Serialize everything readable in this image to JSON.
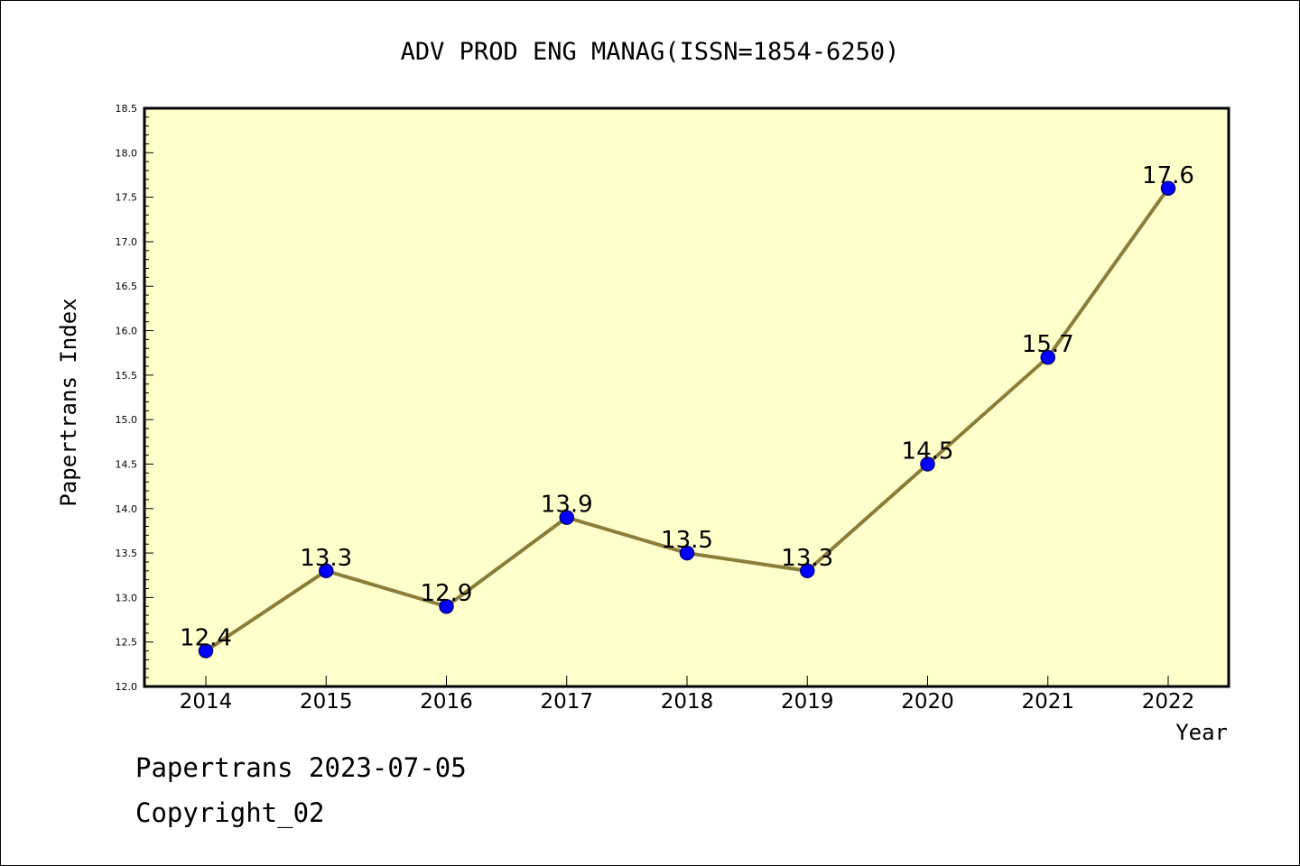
{
  "chart_data": {
    "type": "line",
    "title": "ADV PROD ENG MANAG(ISSN=1854-6250)",
    "xlabel": "Year",
    "ylabel": "Papertrans Index",
    "categories": [
      "2014",
      "2015",
      "2016",
      "2017",
      "2018",
      "2019",
      "2020",
      "2021",
      "2022"
    ],
    "series": [
      {
        "values": [
          12.4,
          13.3,
          12.9,
          13.9,
          13.5,
          13.3,
          14.5,
          15.7,
          17.6
        ],
        "labels": [
          "12.4",
          "13.3",
          "12.9",
          "13.9",
          "13.5",
          "13.3",
          "14.5",
          "15.7",
          "17.6"
        ]
      }
    ],
    "ylim": [
      12.0,
      18.5
    ],
    "yticks": [
      "12.0",
      "12.5",
      "13.0",
      "13.5",
      "14.0",
      "14.5",
      "15.0",
      "15.5",
      "16.0",
      "16.5",
      "17.0",
      "17.5",
      "18.0",
      "18.5"
    ],
    "grid": false,
    "legend": "none",
    "colors": {
      "plot_background": "#ffffcc",
      "line": "#8b7d3a",
      "marker_fill": "#0000ff",
      "marker_edge": "#000080",
      "axes": "#000000"
    }
  },
  "footer": {
    "date_line": "Papertrans 2023-07-05",
    "copyright_line": "Copyright_02"
  }
}
